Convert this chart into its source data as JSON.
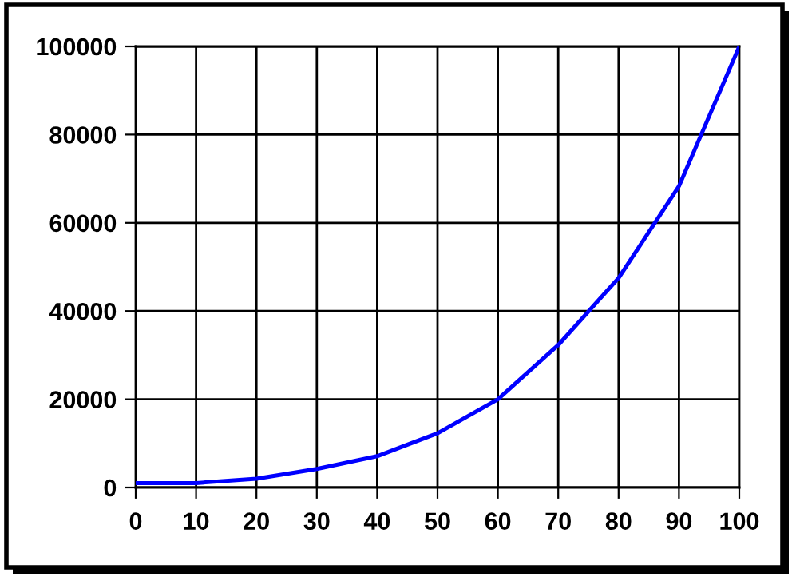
{
  "chart_data": {
    "type": "line",
    "x": [
      0,
      10,
      20,
      30,
      40,
      50,
      60,
      70,
      80,
      90,
      100
    ],
    "series": [
      {
        "color": "#0000ff",
        "values": [
          1000,
          1000,
          2000,
          4200,
          7100,
          12300,
          20000,
          32300,
          47500,
          68300,
          100000
        ]
      }
    ],
    "xlim": [
      0,
      100
    ],
    "xticks": [
      0,
      10,
      20,
      30,
      40,
      50,
      60,
      70,
      80,
      90,
      100
    ],
    "ylim": [
      0,
      100000
    ],
    "yticks": [
      0,
      20000,
      40000,
      60000,
      80000,
      100000
    ],
    "grid": true,
    "marker": "none",
    "line_style": "solid"
  }
}
